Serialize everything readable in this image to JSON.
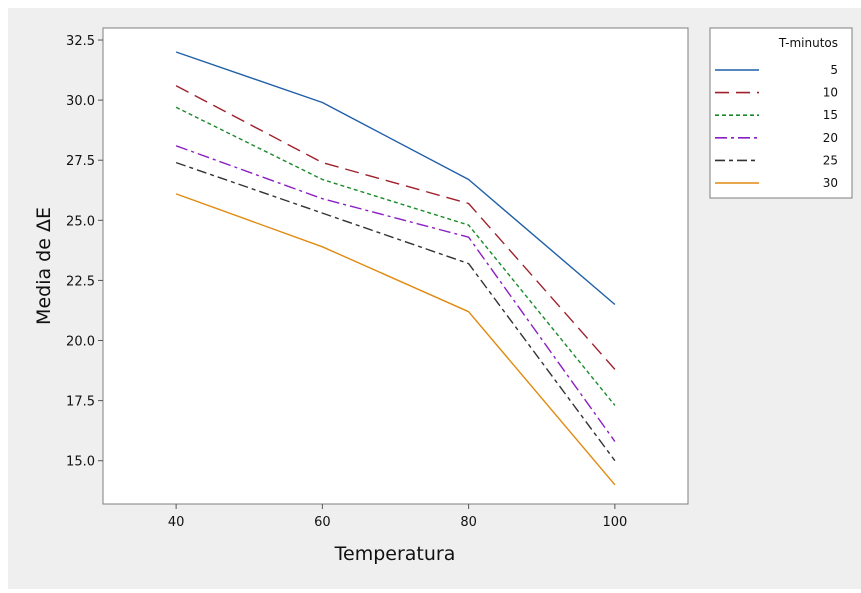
{
  "chart_data": {
    "type": "line",
    "xlabel": "Temperatura",
    "ylabel": "Media de ΔE",
    "x": [
      40,
      60,
      80,
      100
    ],
    "xlim": [
      30,
      110
    ],
    "ylim": [
      13.2,
      33.0
    ],
    "x_ticks": [
      "40",
      "60",
      "80",
      "100"
    ],
    "y_ticks": [
      "15.0",
      "17.5",
      "20.0",
      "22.5",
      "25.0",
      "27.5",
      "30.0",
      "32.5"
    ],
    "grid": false,
    "legend_title": "T-minutos",
    "legend_position": "right",
    "series": [
      {
        "name": "5",
        "color": "#1f5fa8",
        "dash": "solid",
        "values": [
          32.0,
          29.9,
          26.7,
          21.5
        ]
      },
      {
        "name": "10",
        "color": "#a0202b",
        "dash": "long-dash",
        "values": [
          30.6,
          27.4,
          25.7,
          18.8
        ]
      },
      {
        "name": "15",
        "color": "#1a8a2a",
        "dash": "short-dash",
        "values": [
          29.7,
          26.7,
          24.8,
          17.3
        ]
      },
      {
        "name": "20",
        "color": "#8b1fc4",
        "dash": "dash-dot",
        "values": [
          28.1,
          25.9,
          24.3,
          15.8
        ]
      },
      {
        "name": "25",
        "color": "#333333",
        "dash": "long-short",
        "values": [
          27.4,
          25.3,
          23.2,
          15.0
        ]
      },
      {
        "name": "30",
        "color": "#e08a10",
        "dash": "solid",
        "values": [
          26.1,
          23.9,
          21.2,
          14.0
        ]
      }
    ]
  }
}
